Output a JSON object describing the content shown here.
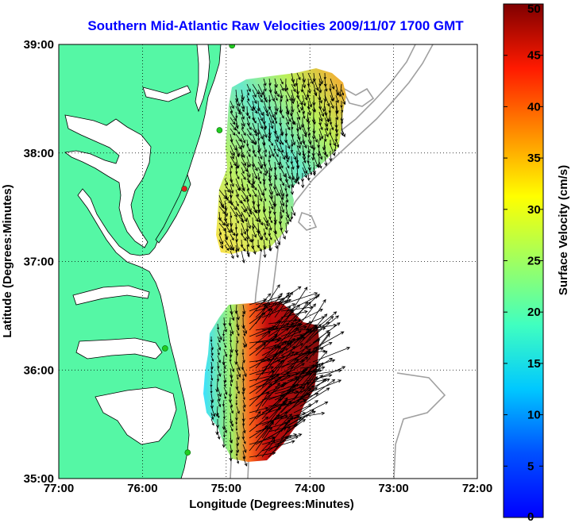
{
  "title": "Southern Mid-Atlantic Raw Velocities 2009/11/07 1700 GMT",
  "title_color": "#0000ff",
  "colors": {
    "land": "#55f7a5",
    "ocean": "#ffffff",
    "coastline": "#000000",
    "bathymetry": "#a0a0a0",
    "grid": "#000000",
    "station_green": "#22cc22",
    "station_red": "#e02020",
    "vector": "#000000"
  },
  "map": {
    "xlabel": "Longitude (Degrees:Minutes)",
    "ylabel": "Latitude (Degrees:Minutes)",
    "x_ticks": [
      "77:00",
      "76:00",
      "75:00",
      "74:00",
      "73:00",
      "72:00"
    ],
    "x_range": [
      -77,
      -72
    ],
    "y_ticks": [
      "39:00",
      "38:00",
      "37:00",
      "36:00",
      "35:00"
    ],
    "y_range": [
      35,
      39
    ],
    "grid": "dotted"
  },
  "colorbar": {
    "label": "Surface Velocity (cm/s)",
    "ticks": [
      "0",
      "5",
      "10",
      "15",
      "20",
      "25",
      "30",
      "35",
      "40",
      "45",
      "50"
    ],
    "range": [
      0,
      50
    ],
    "colormap": "jet"
  },
  "stations": [
    {
      "type": "green",
      "lon": -74.93,
      "lat": 38.99
    },
    {
      "type": "green",
      "lon": -75.08,
      "lat": 38.21
    },
    {
      "type": "red",
      "lon": -75.5,
      "lat": 37.67
    },
    {
      "type": "green",
      "lon": -75.73,
      "lat": 36.2
    },
    {
      "type": "green",
      "lon": -75.46,
      "lat": 35.24
    }
  ]
}
